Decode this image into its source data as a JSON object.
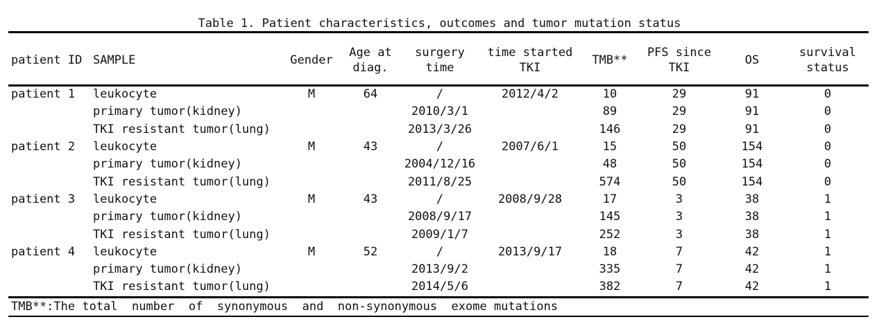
{
  "caption": "Table 1. Patient characteristics, outcomes and tumor mutation status",
  "headers": {
    "patient_id": "patient ID",
    "sample": "SAMPLE",
    "gender": "Gender",
    "age_l1": "Age at",
    "age_l2": "diag.",
    "surgery_l1": "surgery",
    "surgery_l2": "time",
    "tki_l1": "time started",
    "tki_l2": "TKI",
    "tmb": "TMB**",
    "pfs_l1": "PFS since",
    "pfs_l2": "TKI",
    "os": "OS",
    "survival_l1": "survival",
    "survival_l2": "status"
  },
  "rows": [
    {
      "patient": "patient 1",
      "sample": "leukocyte",
      "gender": "M",
      "age": "64",
      "surgery": "/",
      "tki": "2012/4/2",
      "tmb": "10",
      "pfs": "29",
      "os": "91",
      "status": "0"
    },
    {
      "patient": "",
      "sample": "primary tumor(kidney)",
      "gender": "",
      "age": "",
      "surgery": "2010/3/1",
      "tki": "",
      "tmb": "89",
      "pfs": "29",
      "os": "91",
      "status": "0"
    },
    {
      "patient": "",
      "sample": "TKI resistant tumor(lung)",
      "gender": "",
      "age": "",
      "surgery": "2013/3/26",
      "tki": "",
      "tmb": "146",
      "pfs": "29",
      "os": "91",
      "status": "0"
    },
    {
      "patient": "patient 2",
      "sample": "leukocyte",
      "gender": "M",
      "age": "43",
      "surgery": "/",
      "tki": "2007/6/1",
      "tmb": "15",
      "pfs": "50",
      "os": "154",
      "status": "0"
    },
    {
      "patient": "",
      "sample": "primary tumor(kidney)",
      "gender": "",
      "age": "",
      "surgery": "2004/12/16",
      "tki": "",
      "tmb": "48",
      "pfs": "50",
      "os": "154",
      "status": "0"
    },
    {
      "patient": "",
      "sample": "TKI resistant tumor(lung)",
      "gender": "",
      "age": "",
      "surgery": "2011/8/25",
      "tki": "",
      "tmb": "574",
      "pfs": "50",
      "os": "154",
      "status": "0"
    },
    {
      "patient": "patient 3",
      "sample": "leukocyte",
      "gender": "M",
      "age": "43",
      "surgery": "/",
      "tki": "2008/9/28",
      "tmb": "17",
      "pfs": "3",
      "os": "38",
      "status": "1"
    },
    {
      "patient": "",
      "sample": "primary tumor(kidney)",
      "gender": "",
      "age": "",
      "surgery": "2008/9/17",
      "tki": "",
      "tmb": "145",
      "pfs": "3",
      "os": "38",
      "status": "1"
    },
    {
      "patient": "",
      "sample": "TKI resistant tumor(lung)",
      "gender": "",
      "age": "",
      "surgery": "2009/1/7",
      "tki": "",
      "tmb": "252",
      "pfs": "3",
      "os": "38",
      "status": "1"
    },
    {
      "patient": "patient 4",
      "sample": "leukocyte",
      "gender": "M",
      "age": "52",
      "surgery": "/",
      "tki": "2013/9/17",
      "tmb": "18",
      "pfs": "7",
      "os": "42",
      "status": "1"
    },
    {
      "patient": "",
      "sample": "primary tumor(kidney)",
      "gender": "",
      "age": "",
      "surgery": "2013/9/2",
      "tki": "",
      "tmb": "335",
      "pfs": "7",
      "os": "42",
      "status": "1"
    },
    {
      "patient": "",
      "sample": "TKI resistant tumor(lung)",
      "gender": "",
      "age": "",
      "surgery": "2014/5/6",
      "tki": "",
      "tmb": "382",
      "pfs": "7",
      "os": "42",
      "status": "1"
    }
  ],
  "footnote": "TMB**:The total  number  of  synonymous  and  non-synonymous  exome mutations"
}
